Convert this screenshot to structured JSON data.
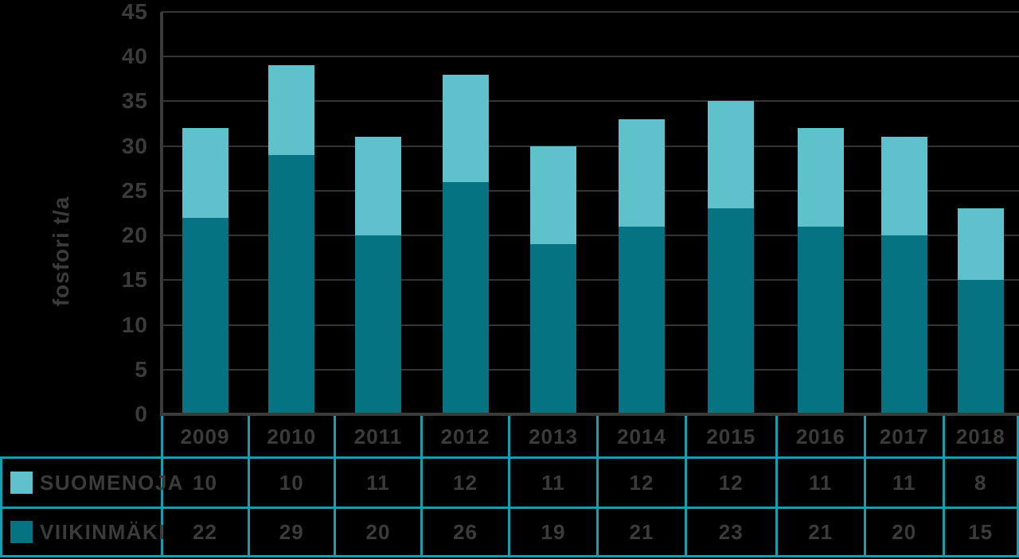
{
  "chart_data": {
    "type": "bar",
    "stacked": true,
    "title": "",
    "ylabel": "fosfori t/a",
    "ylim": [
      0,
      45
    ],
    "yticks": [
      0,
      5,
      10,
      15,
      20,
      25,
      30,
      35,
      40,
      45
    ],
    "grid": true,
    "legend_position": "table-left",
    "categories": [
      "2009",
      "2010",
      "2011",
      "2012",
      "2013",
      "2014",
      "2015",
      "2016",
      "2017",
      "2018"
    ],
    "series": [
      {
        "name": "SUOMENOJA",
        "color": "#5fc1cc",
        "values": [
          10,
          10,
          11,
          12,
          11,
          12,
          12,
          11,
          11,
          8
        ]
      },
      {
        "name": "VIIKINMÄKI",
        "color": "#057381",
        "values": [
          22,
          29,
          20,
          26,
          19,
          21,
          23,
          21,
          20,
          15
        ]
      }
    ],
    "stack_order_bottom_to_top": [
      "VIIKINMÄKI",
      "SUOMENOJA"
    ]
  },
  "colors": {
    "background": "#000000",
    "series_light": "#5fc1cc",
    "series_dark": "#057381",
    "table_border": "#149fb1",
    "axis": "#3b3b3b",
    "gridline": "#343434",
    "text": "#3b3b3b"
  }
}
